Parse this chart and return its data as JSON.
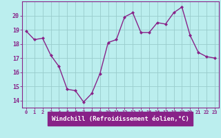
{
  "x": [
    0,
    1,
    2,
    3,
    4,
    5,
    6,
    7,
    8,
    9,
    10,
    11,
    12,
    13,
    14,
    15,
    16,
    17,
    18,
    19,
    20,
    21,
    22,
    23
  ],
  "y": [
    18.9,
    18.3,
    18.4,
    17.2,
    16.4,
    14.8,
    14.7,
    13.9,
    14.5,
    15.9,
    18.1,
    18.3,
    19.9,
    20.2,
    18.8,
    18.8,
    19.5,
    19.4,
    20.2,
    20.6,
    18.6,
    17.4,
    17.1,
    17.0
  ],
  "line_color": "#882288",
  "marker": "D",
  "markersize": 2.0,
  "linewidth": 1.0,
  "bg_color": "#bbeeee",
  "plot_bg_color": "#bbeeee",
  "grid_color": "#99cccc",
  "axis_color": "#882288",
  "tick_color": "#882288",
  "xlabel": "Windchill (Refroidissement éolien,°C)",
  "xlabel_bg": "#882288",
  "xlabel_fg": "#ffffff",
  "xlim": [
    -0.5,
    23.5
  ],
  "ylim": [
    13.5,
    21.0
  ],
  "yticks": [
    14,
    15,
    16,
    17,
    18,
    19,
    20
  ],
  "xticks": [
    0,
    1,
    2,
    3,
    4,
    5,
    6,
    7,
    8,
    9,
    10,
    11,
    12,
    13,
    14,
    15,
    16,
    17,
    18,
    19,
    20,
    21,
    22,
    23
  ],
  "font_size_x": 5.0,
  "font_size_y": 6.0,
  "font_size_label": 6.5
}
